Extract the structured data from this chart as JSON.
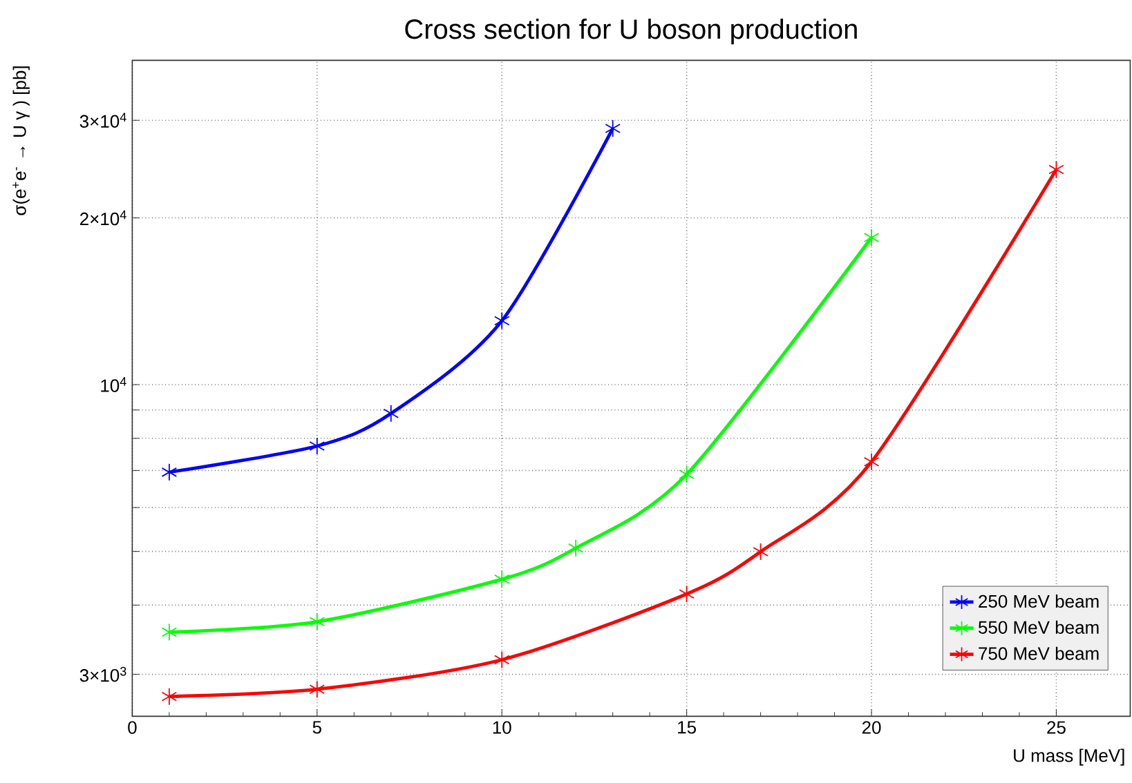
{
  "chart_data": {
    "type": "line",
    "title": "Cross section for U boson production",
    "xlabel": "U mass [MeV]",
    "ylabel": "σ(e$^{+}$e$^{-}$ → U γ ) [pb]",
    "series": [
      {
        "name": "250 MeV beam",
        "color": "#0000ff",
        "x": [
          1,
          5,
          7,
          10,
          13
        ],
        "values": [
          6950,
          7750,
          8870,
          13040,
          29000
        ]
      },
      {
        "name": "550 MeV beam",
        "color": "#00ff00",
        "x": [
          1,
          5,
          10,
          12,
          15,
          20
        ],
        "values": [
          3575,
          3735,
          4455,
          5070,
          6890,
          18430
        ]
      },
      {
        "name": "750 MeV beam",
        "color": "#ff0000",
        "x": [
          1,
          5,
          10,
          15,
          17,
          20,
          25
        ],
        "values": [
          2736,
          2820,
          3188,
          4190,
          4995,
          7257,
          24450
        ]
      }
    ],
    "xlim": [
      0,
      27
    ],
    "xticks": [
      0,
      5,
      10,
      15,
      20,
      25
    ],
    "ylim": [
      2520,
      38500
    ],
    "yticks": [
      {
        "value": 3000,
        "label": "3×10$^{3}$"
      },
      {
        "value": 4000,
        "label": null
      },
      {
        "value": 5000,
        "label": null
      },
      {
        "value": 6000,
        "label": null
      },
      {
        "value": 7000,
        "label": null
      },
      {
        "value": 8000,
        "label": null
      },
      {
        "value": 9000,
        "label": null
      },
      {
        "value": 10000,
        "label": "10$^{4}$"
      },
      {
        "value": 20000,
        "label": "2×10$^{4}$"
      },
      {
        "value": 30000,
        "label": "3×10$^{4}$"
      }
    ],
    "log": "y",
    "grid": true,
    "legend": "bottom right",
    "marker": "cross",
    "line_style": "solid"
  }
}
